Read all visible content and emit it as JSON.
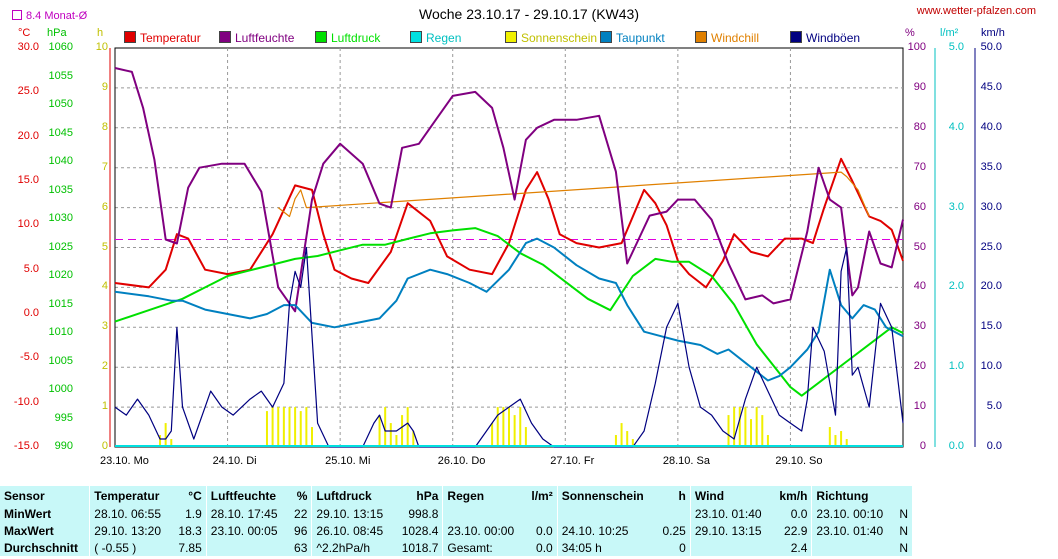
{
  "header": {
    "title": "Woche 23.10.17 - 29.10.17 (KW43)",
    "site": "www.wetter-pfalzen.com",
    "monthly_avg_label": "8.4 Monat-Ø"
  },
  "units": {
    "temp": "°C",
    "pressure": "hPa",
    "sun": "h",
    "humidity": "%",
    "rain": "l/m²",
    "wind": "km/h"
  },
  "legend": [
    {
      "name": "Temperatur",
      "color": "#e00000"
    },
    {
      "name": "Luftfeuchte",
      "color": "#800080"
    },
    {
      "name": "Luftdruck",
      "color": "#00e000"
    },
    {
      "name": "Regen",
      "color": "#00e0e0"
    },
    {
      "name": "Sonnenschein",
      "color": "#f0f000"
    },
    {
      "name": "Taupunkt",
      "color": "#0080c0"
    },
    {
      "name": "Windchill",
      "color": "#e08000"
    },
    {
      "name": "Windböen",
      "color": "#000080"
    }
  ],
  "axis_ticks": {
    "temp": [
      "30.0",
      "25.0",
      "20.0",
      "15.0",
      "10.0",
      "5.0",
      "0.0",
      "-5.0",
      "-10.0",
      "-15.0"
    ],
    "pressure": [
      "1060",
      "1055",
      "1050",
      "1045",
      "1040",
      "1035",
      "1030",
      "1025",
      "1020",
      "1015",
      "1010",
      "1005",
      "1000",
      "995",
      "990"
    ],
    "sun": [
      "10",
      "9",
      "8",
      "7",
      "6",
      "5",
      "4",
      "3",
      "2",
      "1",
      "0"
    ],
    "humidity": [
      "100",
      "90",
      "80",
      "70",
      "60",
      "50",
      "40",
      "30",
      "20",
      "10",
      "0"
    ],
    "rain": [
      "5.0",
      "4.0",
      "3.0",
      "2.0",
      "1.0",
      "0.0"
    ],
    "wind": [
      "50.0",
      "45.0",
      "40.0",
      "35.0",
      "30.0",
      "25.0",
      "20.0",
      "15.0",
      "10.0",
      "5.0",
      "0.0"
    ]
  },
  "chart_data": {
    "type": "line",
    "title": "Woche 23.10.17 - 29.10.17 (KW43)",
    "categories": [
      "23.10. Mo",
      "24.10. Di",
      "25.10. Mi",
      "26.10. Do",
      "27.10. Fr",
      "28.10. Sa",
      "29.10. So"
    ],
    "x_range_days": [
      0,
      7
    ],
    "grid": true,
    "reference_line": {
      "name": "8.4 Monat-Ø",
      "value": 8.4,
      "axis": "temp",
      "color": "#e000e0"
    },
    "series": [
      {
        "name": "Temperatur",
        "axis": "temp",
        "ylim": [
          -15,
          30
        ],
        "color": "#e00000",
        "x": [
          0,
          0.3,
          0.45,
          0.55,
          0.65,
          0.8,
          1.0,
          1.2,
          1.4,
          1.6,
          1.75,
          1.85,
          1.95,
          2.1,
          2.25,
          2.45,
          2.6,
          2.8,
          2.95,
          3.15,
          3.35,
          3.5,
          3.65,
          3.75,
          3.85,
          3.95,
          4.1,
          4.3,
          4.5,
          4.7,
          4.8,
          4.9,
          5.0,
          5.1,
          5.25,
          5.4,
          5.5,
          5.65,
          5.8,
          5.95,
          6.1,
          6.2,
          6.3,
          6.45,
          6.55,
          6.7,
          6.8,
          6.9,
          7.0
        ],
        "y": [
          3.5,
          3.0,
          5.0,
          9.0,
          8.5,
          5.0,
          4.5,
          5.0,
          9.0,
          14.5,
          14.0,
          9.0,
          5.0,
          4.0,
          3.5,
          7.0,
          12.5,
          10.5,
          6.5,
          5.0,
          4.5,
          8.0,
          14.0,
          16.0,
          13.0,
          9.0,
          8.0,
          7.5,
          8.0,
          14.0,
          12.5,
          10.0,
          6.0,
          4.5,
          3.0,
          6.0,
          9.0,
          7.0,
          6.5,
          8.5,
          8.5,
          8.0,
          12.0,
          17.5,
          15.0,
          11.0,
          10.5,
          9.5,
          6.0
        ]
      },
      {
        "name": "Windchill",
        "axis": "temp",
        "ylim": [
          -15,
          30
        ],
        "color": "#e08000",
        "x": [
          1.45,
          1.55,
          1.6,
          1.65,
          1.7,
          6.45,
          6.5,
          6.6,
          6.7
        ],
        "y": [
          12.0,
          11.0,
          13.0,
          14.0,
          12.0,
          16.0,
          15.5,
          14.0,
          11.0
        ]
      },
      {
        "name": "Luftfeuchte",
        "axis": "humidity",
        "ylim": [
          0,
          100
        ],
        "color": "#800080",
        "x": [
          0,
          0.15,
          0.25,
          0.35,
          0.45,
          0.55,
          0.65,
          0.75,
          0.95,
          1.15,
          1.3,
          1.45,
          1.6,
          1.75,
          1.85,
          2.0,
          2.2,
          2.35,
          2.45,
          2.55,
          2.7,
          2.85,
          3.0,
          3.2,
          3.35,
          3.45,
          3.55,
          3.65,
          3.75,
          3.9,
          4.1,
          4.3,
          4.45,
          4.55,
          4.65,
          4.75,
          4.9,
          5.0,
          5.15,
          5.3,
          5.45,
          5.6,
          5.75,
          5.85,
          6.0,
          6.15,
          6.25,
          6.35,
          6.45,
          6.55,
          6.6,
          6.7,
          6.8,
          6.9,
          7.0
        ],
        "y": [
          95,
          94,
          85,
          72,
          52,
          51,
          65,
          70,
          71,
          71,
          64,
          40,
          34,
          62,
          71,
          76,
          71,
          61,
          60,
          75,
          76,
          82,
          88,
          89,
          85,
          75,
          62,
          77,
          80,
          82,
          82,
          83,
          69,
          46,
          52,
          58,
          59,
          62,
          62,
          57,
          46,
          37,
          38,
          36,
          37,
          54,
          70,
          62,
          60,
          38,
          40,
          54,
          46,
          45,
          57
        ]
      },
      {
        "name": "Luftdruck",
        "axis": "pressure",
        "ylim": [
          990,
          1060
        ],
        "color": "#00e000",
        "x": [
          0,
          0.3,
          0.6,
          0.8,
          1.0,
          1.2,
          1.4,
          1.6,
          1.8,
          2.0,
          2.2,
          2.4,
          2.6,
          2.8,
          3.0,
          3.2,
          3.4,
          3.6,
          3.8,
          4.0,
          4.2,
          4.4,
          4.6,
          4.8,
          4.95,
          5.1,
          5.3,
          5.5,
          5.7,
          5.9,
          6.0,
          6.1,
          6.3,
          6.5,
          6.7,
          6.9,
          7.0
        ],
        "y": [
          1012,
          1014,
          1016,
          1018,
          1020,
          1021,
          1022,
          1023,
          1023.5,
          1024.5,
          1025.5,
          1025.5,
          1026.5,
          1027.5,
          1028,
          1028.4,
          1027,
          1024,
          1022,
          1019,
          1016,
          1014,
          1020,
          1023,
          1022.5,
          1022.5,
          1020,
          1015,
          1008,
          1003,
          1000.5,
          999,
          1002,
          1005,
          1008,
          1011,
          1010
        ]
      },
      {
        "name": "Taupunkt",
        "axis": "temp",
        "ylim": [
          -15,
          30
        ],
        "color": "#0080c0",
        "x": [
          0,
          0.3,
          0.5,
          0.6,
          0.8,
          1.0,
          1.2,
          1.35,
          1.5,
          1.6,
          1.75,
          1.95,
          2.15,
          2.35,
          2.5,
          2.6,
          2.8,
          2.95,
          3.15,
          3.3,
          3.5,
          3.65,
          3.75,
          3.9,
          4.1,
          4.3,
          4.45,
          4.55,
          4.7,
          4.85,
          5.0,
          5.2,
          5.35,
          5.45,
          5.6,
          5.8,
          5.9,
          6.0,
          6.15,
          6.25,
          6.35,
          6.45,
          6.55,
          6.65,
          6.75,
          6.85,
          7.0
        ],
        "y": [
          2.5,
          2.0,
          1.5,
          1.5,
          0.5,
          0.0,
          -0.5,
          0.0,
          1.0,
          1.0,
          -1.0,
          -1.5,
          -1.0,
          -0.5,
          1.5,
          4.0,
          5.0,
          4.5,
          3.5,
          2.5,
          5.0,
          8.0,
          8.5,
          7.5,
          5.5,
          4.0,
          3.5,
          1.0,
          -2.0,
          -2.5,
          -3.0,
          -3.5,
          -4.5,
          -4.0,
          -5.5,
          -7.5,
          -7.0,
          -6.0,
          -4.0,
          -2.0,
          5.0,
          1.0,
          -0.5,
          1.0,
          0.5,
          -1.5,
          -2.5
        ]
      },
      {
        "name": "Windböen",
        "axis": "wind",
        "ylim": [
          0,
          50
        ],
        "color": "#000080",
        "x": [
          0,
          0.1,
          0.2,
          0.3,
          0.4,
          0.45,
          0.5,
          0.55,
          0.6,
          0.7,
          0.8,
          0.85,
          0.95,
          1.05,
          1.2,
          1.3,
          1.4,
          1.5,
          1.55,
          1.6,
          1.65,
          1.7,
          1.75,
          1.8,
          1.9,
          2.0,
          2.1,
          2.2,
          2.3,
          2.35,
          2.4,
          2.5,
          2.6,
          2.65,
          2.7,
          2.8,
          2.9,
          3.0,
          3.1,
          3.2,
          3.3,
          3.4,
          3.5,
          3.6,
          3.7,
          3.8,
          3.9,
          4.0,
          4.1,
          4.2,
          4.3,
          4.4,
          4.5,
          4.6,
          4.7,
          4.8,
          4.9,
          5.0,
          5.1,
          5.2,
          5.3,
          5.4,
          5.5,
          5.6,
          5.7,
          5.8,
          5.9,
          6.0,
          6.1,
          6.15,
          6.2,
          6.3,
          6.4,
          6.45,
          6.5,
          6.55,
          6.6,
          6.7,
          6.8,
          6.9,
          7.0
        ],
        "y": [
          5,
          4,
          6,
          4,
          1,
          1,
          2,
          15,
          5,
          1,
          5,
          7,
          5,
          4,
          6,
          7,
          5,
          8,
          18,
          22,
          20,
          25,
          14,
          3,
          0,
          0,
          0,
          0,
          3,
          4,
          2,
          2,
          3,
          2,
          0,
          0,
          0,
          0,
          0,
          0,
          2,
          4,
          5,
          6,
          3,
          1,
          0,
          0,
          0,
          0,
          0,
          0,
          0,
          0,
          2,
          8,
          15,
          18,
          10,
          5,
          4,
          2,
          1,
          6,
          10,
          7,
          4,
          3,
          2,
          6,
          15,
          12,
          4,
          22,
          25,
          9,
          10,
          5,
          18,
          15,
          3
        ]
      }
    ],
    "sun_bars": {
      "name": "Sonnenschein",
      "axis": "sun",
      "ylim": [
        0,
        10
      ],
      "color": "#f0f000",
      "x": [
        0.4,
        0.45,
        0.5,
        1.35,
        1.4,
        1.45,
        1.5,
        1.55,
        1.6,
        1.65,
        1.7,
        1.75,
        2.35,
        2.4,
        2.45,
        2.5,
        2.55,
        2.6,
        2.65,
        3.35,
        3.4,
        3.45,
        3.5,
        3.55,
        3.6,
        3.65,
        4.45,
        4.5,
        4.55,
        4.6,
        5.45,
        5.5,
        5.55,
        5.6,
        5.65,
        5.7,
        5.75,
        5.8,
        6.35,
        6.4,
        6.45,
        6.5
      ],
      "y": [
        0.3,
        0.6,
        0.2,
        0.9,
        1.0,
        1.0,
        1.0,
        1.0,
        1.0,
        0.9,
        1.0,
        0.5,
        0.8,
        1.0,
        0.6,
        0.3,
        0.8,
        1.0,
        0.4,
        0.6,
        1.0,
        1.0,
        1.0,
        0.8,
        1.0,
        0.5,
        0.3,
        0.6,
        0.4,
        0.2,
        0.8,
        1.0,
        1.0,
        1.0,
        0.7,
        1.0,
        0.8,
        0.3,
        0.5,
        0.3,
        0.4,
        0.2
      ]
    }
  },
  "stats": {
    "headers": [
      "Sensor",
      "Temperatur",
      "°C",
      "Luftfeuchte",
      "%",
      "Luftdruck",
      "hPa",
      "Regen",
      "l/m²",
      "Sonnenschein",
      "h",
      "Wind",
      "km/h",
      "Richtung",
      ""
    ],
    "rows": [
      [
        "MinWert",
        "28.10.  06:55",
        "1.9",
        "28.10.  17:45",
        "22",
        "29.10.  13:15",
        "998.8",
        "",
        "",
        "",
        "",
        "23.10.  01:40",
        "0.0",
        "23.10.  00:10",
        "N"
      ],
      [
        "MaxWert",
        "29.10.  13:20",
        "18.3",
        "23.10.  00:05",
        "96",
        "26.10.  08:45",
        "1028.4",
        "23.10.  00:00",
        "0.0",
        "24.10.  10:25",
        "0.25",
        "29.10.  13:15",
        "22.9",
        "23.10.  01:40",
        "N"
      ],
      [
        "Durchschnitt",
        "( -0.55 )",
        "7.85",
        "",
        "63",
        "^2.2hPa/h",
        "1018.7",
        "Gesamt:",
        "0.0",
        "34:05 h",
        "0",
        "",
        "2.4",
        "",
        "N"
      ]
    ]
  }
}
